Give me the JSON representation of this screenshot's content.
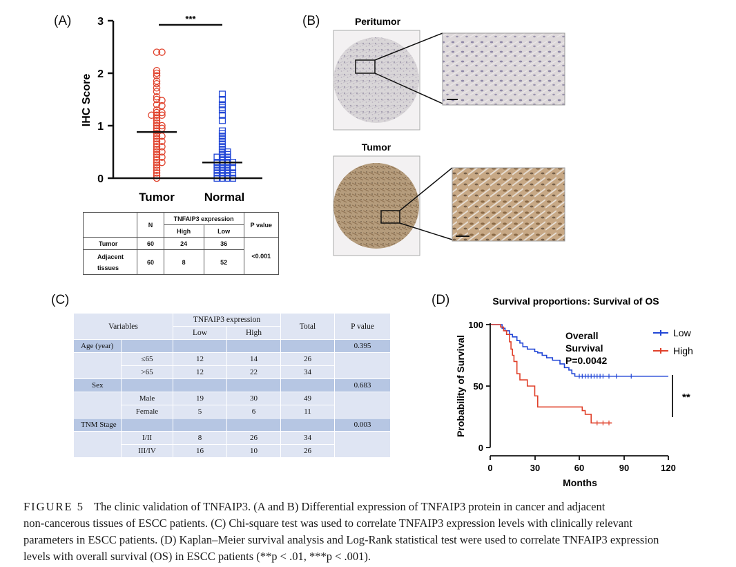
{
  "panelA": {
    "label": "(A)",
    "ylabel": "IHC Score",
    "significance": "***",
    "groups": [
      "Tumor",
      "Normal"
    ],
    "yticks": [
      "0",
      "1",
      "2",
      "3"
    ],
    "table": {
      "col_n": "N",
      "col_expr": "TNFAIP3 expression",
      "col_high": "High",
      "col_low": "Low",
      "col_p": "P value",
      "rows": [
        {
          "name": "Tumor",
          "n": "60",
          "high": "24",
          "low": "36"
        },
        {
          "name": "Adjacent tissues",
          "n": "60",
          "high": "8",
          "low": "52"
        }
      ],
      "p": "<0.001"
    }
  },
  "chart_data": [
    {
      "type": "scatter",
      "title": "",
      "ylabel": "IHC Score",
      "categories": [
        "Tumor",
        "Normal"
      ],
      "ylim": [
        0,
        3
      ],
      "series": [
        {
          "name": "Tumor",
          "mean": 0.88,
          "values": [
            2.4,
            2.4,
            2.05,
            2.0,
            1.95,
            1.85,
            1.8,
            1.72,
            1.65,
            1.55,
            1.5,
            1.48,
            1.4,
            1.38,
            1.3,
            1.25,
            1.25,
            1.2,
            1.2,
            1.2,
            1.15,
            1.1,
            1.05,
            1.0,
            1.0,
            0.95,
            0.95,
            0.9,
            0.85,
            0.8,
            0.8,
            0.75,
            0.7,
            0.7,
            0.65,
            0.6,
            0.6,
            0.55,
            0.5,
            0.5,
            0.45,
            0.4,
            0.4,
            0.35,
            0.3,
            0.3,
            0.25,
            0.2,
            0.15,
            0.1,
            0.05,
            0.0
          ]
        },
        {
          "name": "Normal",
          "mean": 0.3,
          "values": [
            1.6,
            1.5,
            1.4,
            1.35,
            1.3,
            1.2,
            1.1,
            0.9,
            0.85,
            0.8,
            0.75,
            0.7,
            0.65,
            0.6,
            0.55,
            0.5,
            0.5,
            0.45,
            0.45,
            0.4,
            0.4,
            0.4,
            0.35,
            0.35,
            0.3,
            0.3,
            0.3,
            0.3,
            0.25,
            0.25,
            0.25,
            0.2,
            0.2,
            0.2,
            0.2,
            0.15,
            0.15,
            0.15,
            0.1,
            0.1,
            0.1,
            0.1,
            0.05,
            0.05,
            0.05,
            0.05,
            0.0,
            0.0,
            0.0,
            0.0
          ]
        }
      ]
    },
    {
      "type": "line",
      "title": "Survival proportions: Survival of OS",
      "xlabel": "Months",
      "ylabel": "Probability of Survival",
      "xlim": [
        0,
        120
      ],
      "ylim": [
        0,
        100
      ],
      "xticks": [
        0,
        30,
        60,
        90,
        120
      ],
      "yticks": [
        0,
        50,
        100
      ],
      "series": [
        {
          "name": "Low",
          "color": "#2146d6",
          "x": [
            0,
            5,
            8,
            10,
            13,
            15,
            18,
            20,
            22,
            25,
            30,
            32,
            35,
            38,
            42,
            47,
            50,
            53,
            55,
            57,
            120
          ],
          "y": [
            100,
            100,
            97,
            95,
            92,
            90,
            87,
            85,
            82,
            80,
            78,
            77,
            75,
            73,
            71,
            68,
            65,
            63,
            60,
            58,
            58
          ]
        },
        {
          "name": "High",
          "color": "#e0402a",
          "x": [
            0,
            5,
            7,
            9,
            11,
            13,
            14,
            15,
            16,
            18,
            20,
            25,
            30,
            32,
            60,
            62,
            64,
            68,
            80,
            82
          ],
          "y": [
            100,
            100,
            98,
            95,
            92,
            86,
            80,
            75,
            70,
            60,
            55,
            50,
            42,
            33,
            33,
            30,
            27,
            20,
            20,
            20
          ]
        }
      ],
      "legend": "top-right",
      "annotation": "Overall Survival P=0.0042",
      "significance": "**"
    }
  ],
  "panelB": {
    "label": "(B)",
    "top_title": "Peritumor",
    "bottom_title": "Tumor"
  },
  "panelC": {
    "label": "(C)",
    "col_variables": "Variables",
    "col_expr": "TNFAIP3 expression",
    "col_low": "Low",
    "col_high": "High",
    "col_total": "Total",
    "col_p": "P value",
    "groups": [
      {
        "name": "Age (year)",
        "p": "0.395",
        "rows": [
          {
            "label": "≤65",
            "low": "12",
            "high": "14",
            "total": "26"
          },
          {
            "label": ">65",
            "low": "12",
            "high": "22",
            "total": "34"
          }
        ]
      },
      {
        "name": "Sex",
        "p": "0.683",
        "rows": [
          {
            "label": "Male",
            "low": "19",
            "high": "30",
            "total": "49"
          },
          {
            "label": "Female",
            "low": "5",
            "high": "6",
            "total": "11"
          }
        ]
      },
      {
        "name": "TNM Stage",
        "p": "0.003",
        "rows": [
          {
            "label": "I/II",
            "low": "8",
            "high": "26",
            "total": "34"
          },
          {
            "label": "III/IV",
            "low": "16",
            "high": "10",
            "total": "26"
          }
        ]
      }
    ]
  },
  "panelD": {
    "label": "(D)",
    "title": "Survival proportions: Survival of OS",
    "ylabel": "Probability of Survival",
    "xlabel": "Months",
    "legend_low": "Low",
    "legend_high": "High",
    "anno_line1": "Overall",
    "anno_line2": "Survival",
    "anno_line3": "P=0.0042",
    "significance": "**",
    "xticks": [
      "0",
      "30",
      "60",
      "90",
      "120"
    ],
    "yticks": [
      "0",
      "50",
      "100"
    ]
  },
  "caption": {
    "fig": "FIGURE 5",
    "line1": "The clinic validation of TNFAIP3. (A and B) Differential expression of TNFAIP3 protein in cancer and adjacent",
    "line2": "non-cancerous tissues of ESCC patients. (C) Chi-square test was used to correlate TNFAIP3 expression levels with clinically relevant",
    "line3": "parameters in ESCC patients. (D) Kaplan–Meier survival analysis and Log-Rank statistical test were used to correlate TNFAIP3 expression",
    "line4": "levels with overall survival (OS) in ESCC patients (**p < .01, ***p < .001)."
  }
}
